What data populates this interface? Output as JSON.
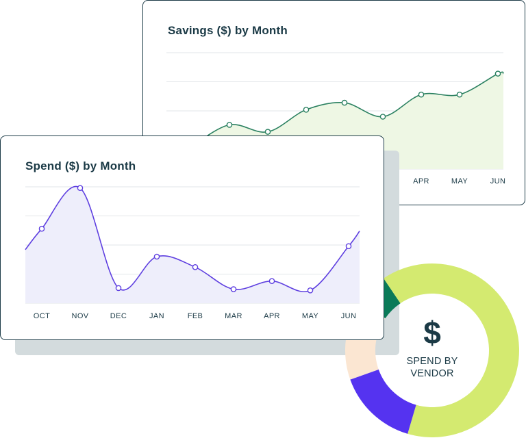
{
  "colors": {
    "dark": "#1b3a46",
    "savings_line": "#2a8060",
    "savings_fill": "#eef7e4",
    "spend_line": "#5e3fe0",
    "spend_fill": "#eeeefb",
    "grid": "#e2e6e8",
    "shadow": "#d3dbdd",
    "vendor_lime": "#d4ea70",
    "vendor_purple": "#5533f0",
    "vendor_peach": "#fbe6d2",
    "vendor_green": "#0a7a58"
  },
  "chart_data": [
    {
      "type": "area",
      "title": "Savings ($) by Month",
      "categories": [
        "",
        "",
        "",
        "",
        "",
        "",
        "APR",
        "MAY",
        "JUN"
      ],
      "series": [
        {
          "values": [
            19,
            38,
            32,
            51,
            57,
            45,
            64,
            64,
            82
          ]
        }
      ],
      "ylim": [
        0,
        100
      ],
      "grid": true
    },
    {
      "type": "area",
      "title": "Spend ($) by Month",
      "categories": [
        "OCT",
        "NOV",
        "DEC",
        "JAN",
        "FEB",
        "MAR",
        "APR",
        "MAY",
        "JUN"
      ],
      "series": [
        {
          "values": [
            64,
            99,
            13,
            40,
            31,
            12,
            19,
            11,
            49
          ]
        }
      ],
      "ylim": [
        0,
        100
      ],
      "grid": true
    },
    {
      "type": "pie",
      "title": "SPEND BY\nVENDOR",
      "symbol": "$",
      "slices": [
        {
          "label": "lime",
          "value": 64,
          "color": "#d4ea70"
        },
        {
          "label": "purple",
          "value": 15,
          "color": "#5533f0"
        },
        {
          "label": "peach",
          "value": 15,
          "color": "#fbe6d2"
        },
        {
          "label": "green",
          "value": 6,
          "color": "#0a7a58"
        }
      ]
    }
  ]
}
